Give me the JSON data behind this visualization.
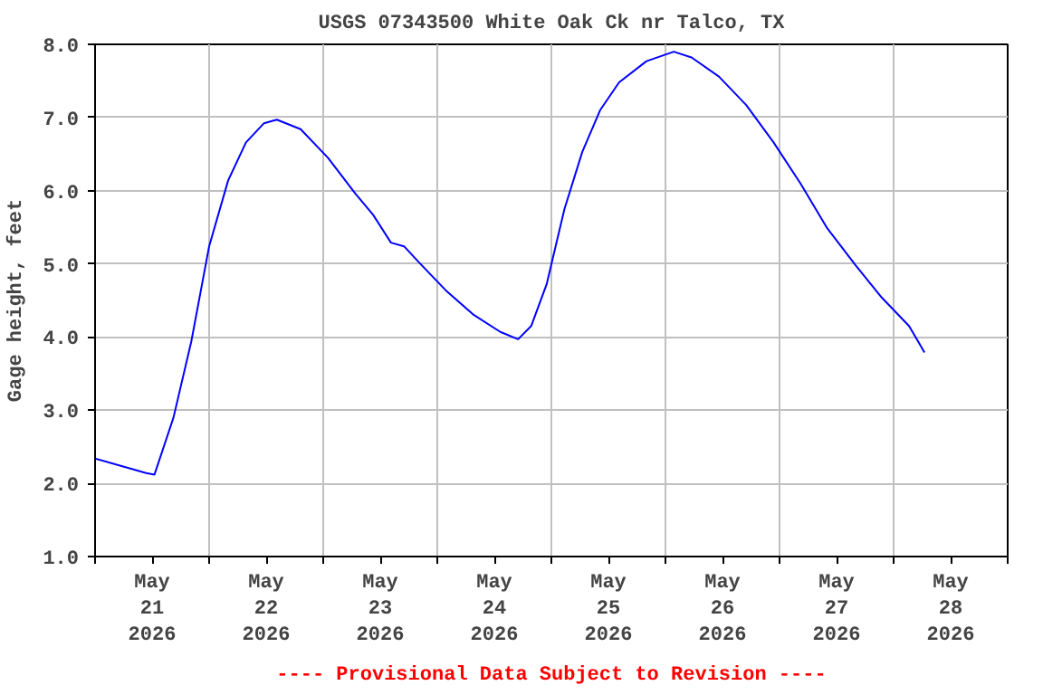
{
  "chart_data": {
    "type": "line",
    "title": "USGS 07343500 White Oak Ck nr Talco, TX",
    "ylabel": "Gage height, feet",
    "annotations": [
      "---- Provisional Data Subject to Revision ----"
    ],
    "x": [
      "2026-05-21T00:00",
      "2026-05-21T10:45",
      "2026-05-21T12:30",
      "2026-05-21T16:30",
      "2026-05-21T20:15",
      "2026-05-22T00:00",
      "2026-05-22T04:00",
      "2026-05-22T07:45",
      "2026-05-22T11:30",
      "2026-05-22T14:15",
      "2026-05-22T19:15",
      "2026-05-23T01:00",
      "2026-05-23T06:45",
      "2026-05-23T10:30",
      "2026-05-23T14:15",
      "2026-05-23T17:00",
      "2026-05-23T20:00",
      "2026-05-24T01:45",
      "2026-05-24T07:30",
      "2026-05-24T13:15",
      "2026-05-24T17:00",
      "2026-05-24T19:45",
      "2026-05-24T23:00",
      "2026-05-25T02:45",
      "2026-05-25T06:30",
      "2026-05-25T10:15",
      "2026-05-25T14:15",
      "2026-05-25T20:00",
      "2026-05-26T01:45",
      "2026-05-26T05:30",
      "2026-05-26T11:15",
      "2026-05-26T17:00",
      "2026-05-26T22:45",
      "2026-05-27T04:30",
      "2026-05-27T10:00",
      "2026-05-27T16:00",
      "2026-05-27T21:30",
      "2026-05-28T03:15",
      "2026-05-28T06:30"
    ],
    "series": [
      {
        "color": "#0000ff",
        "values": [
          2.34,
          2.14,
          2.12,
          2.9,
          3.94,
          5.24,
          6.14,
          6.66,
          6.92,
          6.97,
          6.84,
          6.45,
          5.96,
          5.67,
          5.29,
          5.24,
          5.03,
          4.64,
          4.31,
          4.07,
          3.97,
          4.15,
          4.72,
          5.75,
          6.53,
          7.1,
          7.48,
          7.77,
          7.9,
          7.82,
          7.56,
          7.17,
          6.66,
          6.09,
          5.49,
          4.98,
          4.54,
          4.15,
          3.79
        ]
      }
    ],
    "xlim": [
      "2026-05-21T00:00",
      "2026-05-29T00:00"
    ],
    "xticks": [
      {
        "value": "2026-05-21T00:00",
        "label": null
      },
      {
        "value": "2026-05-21T12:00",
        "label": "May\n21\n2026"
      },
      {
        "value": "2026-05-22T00:00",
        "label": null
      },
      {
        "value": "2026-05-22T12:00",
        "label": "May\n22\n2026"
      },
      {
        "value": "2026-05-23T00:00",
        "label": null
      },
      {
        "value": "2026-05-23T12:00",
        "label": "May\n23\n2026"
      },
      {
        "value": "2026-05-24T00:00",
        "label": null
      },
      {
        "value": "2026-05-24T12:00",
        "label": "May\n24\n2026"
      },
      {
        "value": "2026-05-25T00:00",
        "label": null
      },
      {
        "value": "2026-05-25T12:00",
        "label": "May\n25\n2026"
      },
      {
        "value": "2026-05-26T00:00",
        "label": null
      },
      {
        "value": "2026-05-26T12:00",
        "label": "May\n26\n2026"
      },
      {
        "value": "2026-05-27T00:00",
        "label": null
      },
      {
        "value": "2026-05-27T12:00",
        "label": "May\n27\n2026"
      },
      {
        "value": "2026-05-28T00:00",
        "label": null
      },
      {
        "value": "2026-05-28T12:00",
        "label": "May\n28\n2026"
      },
      {
        "value": "2026-05-29T00:00",
        "label": null
      }
    ],
    "ylim": [
      1.0,
      8.0
    ],
    "yticks": [
      {
        "value": 1,
        "label": "1.0"
      },
      {
        "value": 2,
        "label": "2.0"
      },
      {
        "value": 3,
        "label": "3.0"
      },
      {
        "value": 4,
        "label": "4.0"
      },
      {
        "value": 5,
        "label": "5.0"
      },
      {
        "value": 6,
        "label": "6.0"
      },
      {
        "value": 7,
        "label": "7.0"
      },
      {
        "value": 8,
        "label": "8.0"
      }
    ],
    "grid": true,
    "marker": "none",
    "line_style": "solid"
  }
}
